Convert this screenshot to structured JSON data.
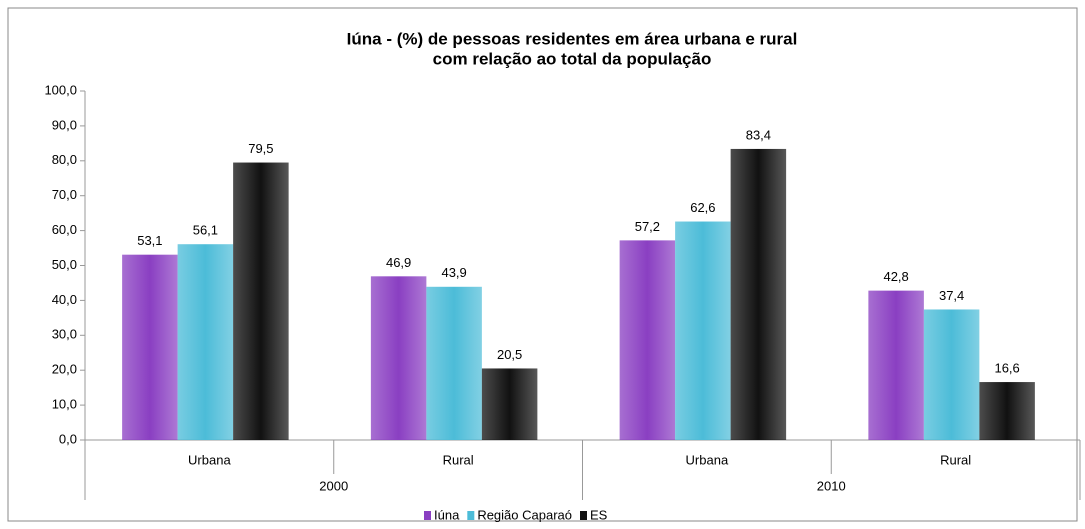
{
  "chart_data": {
    "type": "bar",
    "title": [
      "Iúna - (%) de pessoas residentes em área urbana e rural",
      "com relação ao total da população"
    ],
    "categories": [
      "Urbana",
      "Rural",
      "Urbana",
      "Rural"
    ],
    "groups": [
      "2000",
      "2010"
    ],
    "series": [
      {
        "name": "Iúna",
        "color": "#8a3fc2",
        "values": [
          53.1,
          46.9,
          57.2,
          42.8
        ],
        "value_labels": [
          "53,1",
          "46,9",
          "57,2",
          "42,8"
        ]
      },
      {
        "name": "Região Caparaó",
        "color": "#4cbcd8",
        "values": [
          56.1,
          43.9,
          62.6,
          37.4
        ],
        "value_labels": [
          "56,1",
          "43,9",
          "62,6",
          "37,4"
        ]
      },
      {
        "name": "ES",
        "color": "#111111",
        "values": [
          79.5,
          20.5,
          83.4,
          16.6
        ],
        "value_labels": [
          "79,5",
          "20,5",
          "83,4",
          "16,6"
        ]
      }
    ],
    "ylim": [
      0,
      100
    ],
    "yticks": [
      {
        "value": 0,
        "label": "0,0"
      },
      {
        "value": 10,
        "label": "10,0"
      },
      {
        "value": 20,
        "label": "20,0"
      },
      {
        "value": 30,
        "label": "30,0"
      },
      {
        "value": 40,
        "label": "40,0"
      },
      {
        "value": 50,
        "label": "50,0"
      },
      {
        "value": 60,
        "label": "60,0"
      },
      {
        "value": 70,
        "label": "70,0"
      },
      {
        "value": 80,
        "label": "80,0"
      },
      {
        "value": 90,
        "label": "90,0"
      },
      {
        "value": 100,
        "label": "100,0"
      }
    ],
    "grid": false,
    "legend": "bottom"
  }
}
